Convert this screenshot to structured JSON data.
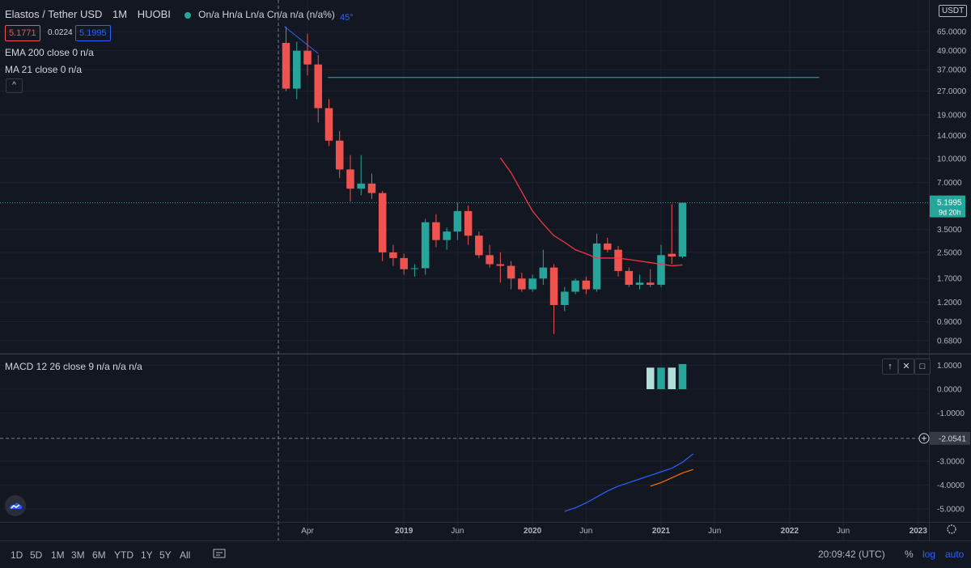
{
  "header": {
    "symbol": "Elastos / Tether USD",
    "interval": "1M",
    "exchange": "HUOBI",
    "ohlc": "On/a Hn/a Ln/a Cn/a n/a (n/a%)",
    "bid": "5.1771",
    "spread": "0.0224",
    "ask": "5.1995",
    "bid_color": "#ef5350",
    "ask_color": "#2962ff"
  },
  "indicators": {
    "ema_label": "EMA 200 close 0",
    "ema_value": "n/a",
    "ma_label": "MA 21 close 0",
    "ma_value": "n/a",
    "macd_label": "MACD 12 26 close 9",
    "macd_values": "n/a n/a n/a"
  },
  "currency_badge": "USDT",
  "annotation_angle": "45°",
  "pane_buttons": {
    "up": "↑",
    "close": "✕",
    "maximize": "□"
  },
  "collapse_label": "^",
  "bottom_bar": {
    "ranges": [
      "1D",
      "5D",
      "1M",
      "3M",
      "6M",
      "YTD",
      "1Y",
      "5Y",
      "All"
    ],
    "clock": "20:09:42 (UTC)",
    "percent": "%",
    "log": "log",
    "auto": "auto"
  },
  "colors": {
    "up": "#26a69a",
    "down": "#ef5350",
    "ma": "#f23645",
    "macd": "#2962ff",
    "signal": "#ff6d00",
    "hline": "#00bcd4",
    "background": "#131722",
    "grid": "#1e222d"
  },
  "chart_data": [
    {
      "type": "candlestick",
      "scale": "log",
      "x_ticks": [
        {
          "label": "Apr",
          "date": "2018-04"
        },
        {
          "label": "2019",
          "date": "2019-01"
        },
        {
          "label": "Jun",
          "date": "2019-06"
        },
        {
          "label": "2020",
          "date": "2020-01"
        },
        {
          "label": "Jun",
          "date": "2020-06"
        },
        {
          "label": "2021",
          "date": "2021-01"
        },
        {
          "label": "Jun",
          "date": "2021-06"
        },
        {
          "label": "2022",
          "date": "2022-01"
        },
        {
          "label": "Jun",
          "date": "2022-06"
        },
        {
          "label": "2023",
          "date": "2023-01"
        }
      ],
      "y_ticks": [
        "65.0000",
        "49.0000",
        "37.0000",
        "27.0000",
        "19.0000",
        "14.0000",
        "10.0000",
        "7.0000",
        "3.5000",
        "2.5000",
        "1.7000",
        "1.2000",
        "0.9000",
        "0.6800"
      ],
      "current_price": "5.1995",
      "countdown": "9d 20h",
      "candles": [
        {
          "date": "2018-02",
          "o": 55,
          "h": 70,
          "l": 27,
          "c": 28
        },
        {
          "date": "2018-03",
          "o": 28,
          "h": 56,
          "l": 24,
          "c": 49
        },
        {
          "date": "2018-04",
          "o": 49,
          "h": 63,
          "l": 34,
          "c": 40
        },
        {
          "date": "2018-05",
          "o": 40,
          "h": 46,
          "l": 17,
          "c": 21
        },
        {
          "date": "2018-06",
          "o": 21,
          "h": 24,
          "l": 12,
          "c": 13
        },
        {
          "date": "2018-07",
          "o": 13,
          "h": 15,
          "l": 7.5,
          "c": 8.5
        },
        {
          "date": "2018-08",
          "o": 8.5,
          "h": 10.5,
          "l": 5.3,
          "c": 6.4
        },
        {
          "date": "2018-09",
          "o": 6.4,
          "h": 10.5,
          "l": 5.8,
          "c": 6.9
        },
        {
          "date": "2018-10",
          "o": 6.9,
          "h": 8,
          "l": 5.5,
          "c": 6.0
        },
        {
          "date": "2018-11",
          "o": 6.0,
          "h": 6.2,
          "l": 2.2,
          "c": 2.5
        },
        {
          "date": "2018-12",
          "o": 2.5,
          "h": 2.8,
          "l": 2.05,
          "c": 2.3
        },
        {
          "date": "2019-01",
          "o": 2.3,
          "h": 2.45,
          "l": 1.8,
          "c": 1.95
        },
        {
          "date": "2019-02",
          "o": 1.96,
          "h": 2.1,
          "l": 1.75,
          "c": 1.98
        },
        {
          "date": "2019-03",
          "o": 1.98,
          "h": 4.1,
          "l": 1.8,
          "c": 3.9
        },
        {
          "date": "2019-04",
          "o": 3.9,
          "h": 4.4,
          "l": 2.7,
          "c": 3.0
        },
        {
          "date": "2019-05",
          "o": 3.0,
          "h": 3.6,
          "l": 2.6,
          "c": 3.4
        },
        {
          "date": "2019-06",
          "o": 3.4,
          "h": 5.2,
          "l": 3.0,
          "c": 4.6
        },
        {
          "date": "2019-07",
          "o": 4.6,
          "h": 5.0,
          "l": 2.8,
          "c": 3.2
        },
        {
          "date": "2019-08",
          "o": 3.2,
          "h": 3.4,
          "l": 2.3,
          "c": 2.4
        },
        {
          "date": "2019-09",
          "o": 2.4,
          "h": 2.8,
          "l": 2.0,
          "c": 2.1
        },
        {
          "date": "2019-10",
          "o": 2.1,
          "h": 2.5,
          "l": 1.6,
          "c": 2.05
        },
        {
          "date": "2019-11",
          "o": 2.05,
          "h": 2.2,
          "l": 1.45,
          "c": 1.7
        },
        {
          "date": "2019-12",
          "o": 1.7,
          "h": 1.85,
          "l": 1.4,
          "c": 1.45
        },
        {
          "date": "2020-01",
          "o": 1.45,
          "h": 1.8,
          "l": 1.4,
          "c": 1.7
        },
        {
          "date": "2020-02",
          "o": 1.7,
          "h": 2.6,
          "l": 1.55,
          "c": 2.0
        },
        {
          "date": "2020-03",
          "o": 2.0,
          "h": 2.1,
          "l": 0.75,
          "c": 1.15
        },
        {
          "date": "2020-04",
          "o": 1.15,
          "h": 1.5,
          "l": 1.05,
          "c": 1.4
        },
        {
          "date": "2020-05",
          "o": 1.4,
          "h": 1.7,
          "l": 1.35,
          "c": 1.65
        },
        {
          "date": "2020-06",
          "o": 1.65,
          "h": 1.75,
          "l": 1.35,
          "c": 1.45
        },
        {
          "date": "2020-07",
          "o": 1.45,
          "h": 3.3,
          "l": 1.4,
          "c": 2.85
        },
        {
          "date": "2020-08",
          "o": 2.85,
          "h": 3.1,
          "l": 2.5,
          "c": 2.6
        },
        {
          "date": "2020-09",
          "o": 2.6,
          "h": 2.75,
          "l": 1.75,
          "c": 1.9
        },
        {
          "date": "2020-10",
          "o": 1.9,
          "h": 2.0,
          "l": 1.5,
          "c": 1.55
        },
        {
          "date": "2020-11",
          "o": 1.55,
          "h": 1.8,
          "l": 1.45,
          "c": 1.6
        },
        {
          "date": "2020-12",
          "o": 1.6,
          "h": 1.95,
          "l": 1.5,
          "c": 1.55
        },
        {
          "date": "2021-01",
          "o": 1.55,
          "h": 2.8,
          "l": 1.5,
          "c": 2.4
        },
        {
          "date": "2021-02",
          "o": 2.45,
          "h": 5.1,
          "l": 2.1,
          "c": 2.35
        },
        {
          "date": "2021-03",
          "o": 2.35,
          "h": 5.2,
          "l": 2.3,
          "c": 5.1995
        }
      ],
      "ma21": [
        {
          "date": "2019-10",
          "v": 10.1
        },
        {
          "date": "2019-11",
          "v": 8.1
        },
        {
          "date": "2019-12",
          "v": 6.1
        },
        {
          "date": "2020-01",
          "v": 4.6
        },
        {
          "date": "2020-02",
          "v": 3.8
        },
        {
          "date": "2020-03",
          "v": 3.2
        },
        {
          "date": "2020-04",
          "v": 2.9
        },
        {
          "date": "2020-05",
          "v": 2.6
        },
        {
          "date": "2020-06",
          "v": 2.45
        },
        {
          "date": "2020-07",
          "v": 2.3
        },
        {
          "date": "2020-08",
          "v": 2.3
        },
        {
          "date": "2020-09",
          "v": 2.3
        },
        {
          "date": "2020-10",
          "v": 2.25
        },
        {
          "date": "2020-11",
          "v": 2.2
        },
        {
          "date": "2020-12",
          "v": 2.15
        },
        {
          "date": "2021-01",
          "v": 2.1
        },
        {
          "date": "2021-02",
          "v": 2.05
        },
        {
          "date": "2021-03",
          "v": 2.08
        }
      ],
      "horizontal_line": {
        "value": 33,
        "from": "2018-05",
        "to": "2022-03"
      },
      "trend_line": [
        {
          "date": "2018-02",
          "v": 70
        },
        {
          "date": "2018-05",
          "v": 47
        }
      ]
    },
    {
      "type": "macd",
      "y_ticks": [
        "1.0000",
        "0.0000",
        "-1.0000",
        "-3.0000",
        "-4.0000",
        "-5.0000"
      ],
      "crosshair_value": "-2.0541",
      "histogram": [
        {
          "date": "2020-12",
          "v": 0.9,
          "color": "#b2dfdb"
        },
        {
          "date": "2021-01",
          "v": 0.9,
          "color": "#26a69a"
        },
        {
          "date": "2021-02",
          "v": 0.9,
          "color": "#b2dfdb"
        },
        {
          "date": "2021-03",
          "v": 1.05,
          "color": "#26a69a"
        }
      ],
      "macd_line": [
        {
          "date": "2020-04",
          "v": -5.1
        },
        {
          "date": "2020-05",
          "v": -4.95
        },
        {
          "date": "2020-06",
          "v": -4.75
        },
        {
          "date": "2020-07",
          "v": -4.5
        },
        {
          "date": "2020-08",
          "v": -4.25
        },
        {
          "date": "2020-09",
          "v": -4.05
        },
        {
          "date": "2020-10",
          "v": -3.9
        },
        {
          "date": "2020-11",
          "v": -3.75
        },
        {
          "date": "2020-12",
          "v": -3.6
        },
        {
          "date": "2021-01",
          "v": -3.45
        },
        {
          "date": "2021-02",
          "v": -3.3
        },
        {
          "date": "2021-03",
          "v": -3.05
        },
        {
          "date": "2021-04",
          "v": -2.7
        }
      ],
      "signal_line": [
        {
          "date": "2020-12",
          "v": -4.05
        },
        {
          "date": "2021-01",
          "v": -3.9
        },
        {
          "date": "2021-02",
          "v": -3.7
        },
        {
          "date": "2021-03",
          "v": -3.5
        },
        {
          "date": "2021-04",
          "v": -3.35
        }
      ]
    }
  ]
}
